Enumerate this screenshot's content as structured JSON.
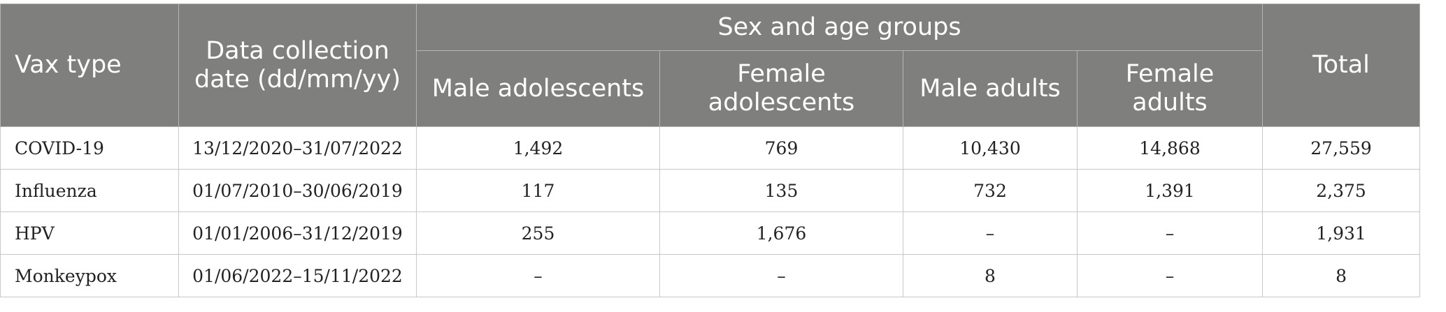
{
  "table": {
    "headers": {
      "vax_type": "Vax type",
      "date": "Data collection date (dd/mm/yy)",
      "group_title": "Sex and age groups",
      "groups": [
        "Male adolescents",
        "Female adolescents",
        "Male adults",
        "Female adults"
      ],
      "total": "Total"
    },
    "rows": [
      {
        "vax": "COVID-19",
        "date": "13/12/2020–31/07/2022",
        "values": [
          "1,492",
          "769",
          "10,430",
          "14,868"
        ],
        "total": "27,559"
      },
      {
        "vax": "Influenza",
        "date": "01/07/2010–30/06/2019",
        "values": [
          "117",
          "135",
          "732",
          "1,391"
        ],
        "total": "2,375"
      },
      {
        "vax": "HPV",
        "date": "01/01/2006–31/12/2019",
        "values": [
          "255",
          "1,676",
          "–",
          "–"
        ],
        "total": "1,931"
      },
      {
        "vax": "Monkeypox",
        "date": "01/06/2022–15/11/2022",
        "values": [
          "–",
          "–",
          "8",
          "–"
        ],
        "total": "8"
      }
    ]
  }
}
